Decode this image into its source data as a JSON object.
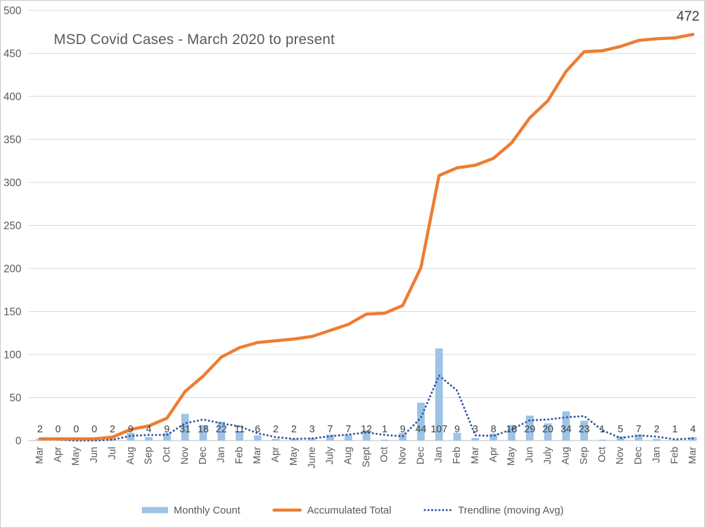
{
  "chart_data": {
    "type": "combo",
    "title": "MSD Covid Cases - March 2020 to present",
    "end_label": "472",
    "categories": [
      "Mar",
      "Apr",
      "May",
      "Jun",
      "Jul",
      "Aug",
      "Sep",
      "Oct",
      "Nov",
      "Dec",
      "Jan",
      "Feb",
      "Mar",
      "Apr",
      "May",
      "June",
      "July",
      "Aug",
      "Sept",
      "Oct",
      "Nov",
      "Dec",
      "Jan",
      "Feb",
      "Mar",
      "Apr",
      "May",
      "Jun",
      "July",
      "Aug",
      "Sep",
      "Oct",
      "Nov",
      "Dec",
      "Jan",
      "Feb",
      "Mar"
    ],
    "series": [
      {
        "name": "Monthly Count",
        "type": "bar",
        "color": "#9DC3E6",
        "values": [
          2,
          0,
          0,
          0,
          2,
          9,
          4,
          9,
          31,
          18,
          22,
          11,
          6,
          2,
          2,
          3,
          7,
          7,
          12,
          1,
          9,
          44,
          107,
          9,
          3,
          8,
          18,
          29,
          20,
          34,
          23,
          1,
          5,
          7,
          2,
          1,
          4
        ]
      },
      {
        "name": "Accumulated Total",
        "type": "line",
        "color": "#ED7D31",
        "values": [
          2,
          2,
          2,
          2,
          4,
          13,
          17,
          26,
          57,
          75,
          97,
          108,
          114,
          116,
          118,
          121,
          128,
          135,
          147,
          148,
          157,
          201,
          308,
          317,
          320,
          328,
          346,
          375,
          395,
          429,
          452,
          453,
          458,
          465,
          467,
          468,
          472
        ]
      },
      {
        "name": "Trendline (moving Avg)",
        "type": "dotted-line",
        "color": "#3358A4",
        "values": [
          null,
          1,
          0,
          0,
          1,
          5.5,
          6.5,
          6.5,
          20,
          24.5,
          20,
          16.5,
          8.5,
          4,
          2,
          2.5,
          5,
          7,
          9.5,
          6.5,
          5,
          26.5,
          75.5,
          58,
          6,
          5.5,
          13,
          23.5,
          24.5,
          27,
          28.5,
          12,
          3,
          6,
          4.5,
          1.5,
          2.5
        ]
      }
    ],
    "y_axis": {
      "min": 0,
      "max": 500,
      "step": 50,
      "ticks": [
        0,
        50,
        100,
        150,
        200,
        250,
        300,
        350,
        400,
        450,
        500
      ]
    },
    "show_bar_data_labels": true,
    "grid": true,
    "legend_position": "bottom",
    "colors": {
      "grid": "#D9D9D9",
      "axis_line": "#BFBFBF",
      "tick_text": "#595959",
      "data_label_text": "#404040",
      "title_text": "#595959",
      "background": "#FFFFFF"
    }
  }
}
